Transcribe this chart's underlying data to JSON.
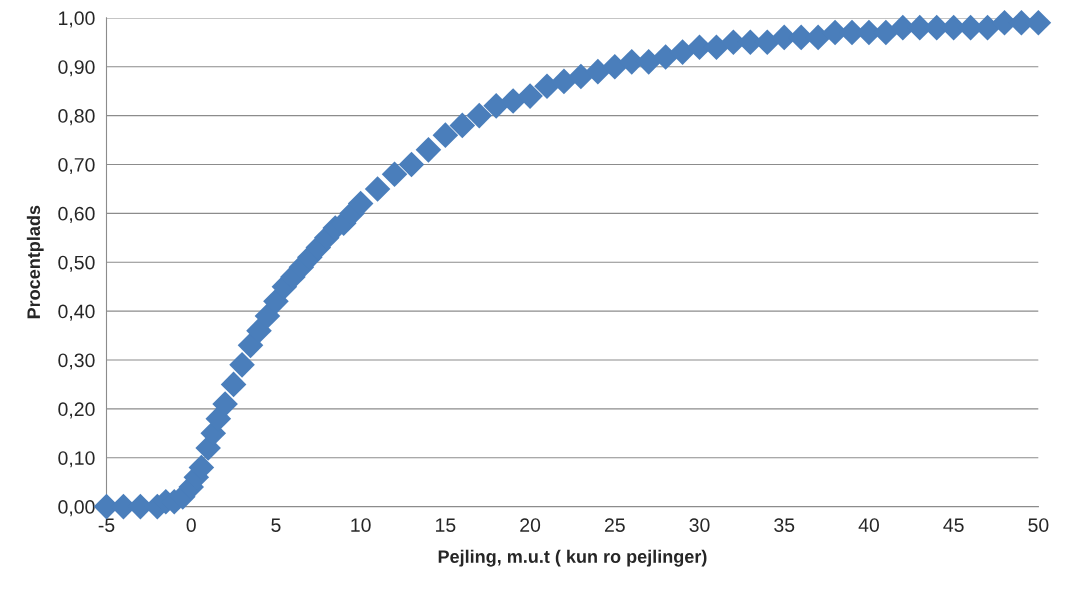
{
  "chart_data": {
    "type": "scatter",
    "xlabel": "Pejling, m.u.t ( kun ro pejlinger)",
    "ylabel": "Procentplads",
    "series": [
      {
        "color": "#4a7ebb",
        "x": [
          -5,
          -4,
          -3,
          -2,
          -1.5,
          -1,
          -0.5,
          0,
          0.3,
          0.6,
          1,
          1.3,
          1.6,
          2,
          2.5,
          3,
          3.5,
          4,
          4.5,
          5,
          5.5,
          6,
          6.5,
          7,
          7.5,
          8,
          8.5,
          9,
          9.5,
          10,
          11,
          12,
          13,
          14,
          15,
          16,
          17,
          18,
          19,
          20,
          21,
          22,
          23,
          24,
          25,
          26,
          27,
          28,
          29,
          30,
          31,
          32,
          33,
          34,
          35,
          36,
          37,
          38,
          39,
          40,
          41,
          42,
          43,
          44,
          45,
          46,
          47,
          48,
          49,
          50
        ],
        "values": [
          0.0,
          0.0,
          0.0,
          0.0,
          0.01,
          0.01,
          0.02,
          0.04,
          0.06,
          0.08,
          0.12,
          0.15,
          0.18,
          0.21,
          0.25,
          0.29,
          0.33,
          0.36,
          0.39,
          0.42,
          0.45,
          0.47,
          0.49,
          0.51,
          0.53,
          0.55,
          0.57,
          0.58,
          0.6,
          0.62,
          0.65,
          0.68,
          0.7,
          0.73,
          0.76,
          0.78,
          0.8,
          0.82,
          0.83,
          0.84,
          0.86,
          0.87,
          0.88,
          0.89,
          0.9,
          0.91,
          0.91,
          0.92,
          0.93,
          0.94,
          0.94,
          0.95,
          0.95,
          0.95,
          0.96,
          0.96,
          0.96,
          0.97,
          0.97,
          0.97,
          0.97,
          0.98,
          0.98,
          0.98,
          0.98,
          0.98,
          0.98,
          0.99,
          0.99,
          0.99
        ]
      }
    ],
    "marker": "diamond",
    "grid": "y",
    "legend": false,
    "xlim": [
      -5,
      50
    ],
    "xticks": [
      -5,
      0,
      5,
      10,
      15,
      20,
      25,
      30,
      35,
      40,
      45,
      50
    ],
    "ylim": [
      0,
      1
    ],
    "yticks": [
      {
        "value": 0,
        "label": "0,00"
      },
      {
        "value": 0.1,
        "label": "0,10"
      },
      {
        "value": 0.2,
        "label": "0,20"
      },
      {
        "value": 0.3,
        "label": "0,30"
      },
      {
        "value": 0.4,
        "label": "0,40"
      },
      {
        "value": 0.5,
        "label": "0,50"
      },
      {
        "value": 0.6,
        "label": "0,60"
      },
      {
        "value": 0.7,
        "label": "0,70"
      },
      {
        "value": 0.8,
        "label": "0,80"
      },
      {
        "value": 0.9,
        "label": "0,90"
      },
      {
        "value": 1,
        "label": "1,00"
      }
    ]
  }
}
